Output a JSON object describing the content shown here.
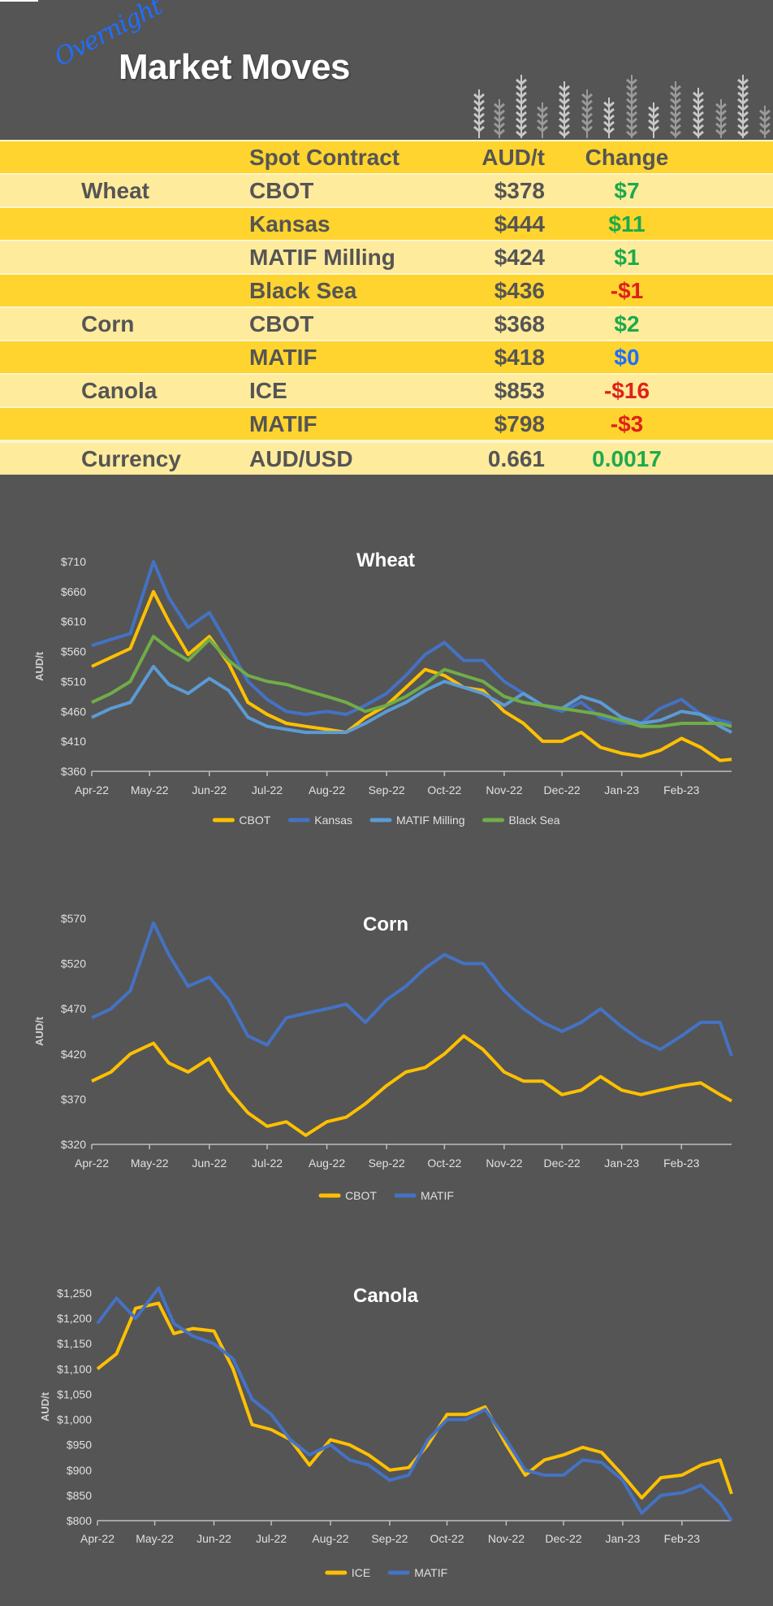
{
  "header": {
    "script_word": "Overnight",
    "title": "Market Moves",
    "icon": "wheat-stalks-icon"
  },
  "table": {
    "headers": {
      "contract": "Spot Contract",
      "price": "AUD/t",
      "change": "Change"
    },
    "rows": [
      {
        "category": "Wheat",
        "contract": "CBOT",
        "price": "$378",
        "change": "$7",
        "change_color": "#1DAA4C"
      },
      {
        "category": "",
        "contract": "Kansas",
        "price": "$444",
        "change": "$11",
        "change_color": "#1DAA4C"
      },
      {
        "category": "",
        "contract": "MATIF Milling",
        "price": "$424",
        "change": "$1",
        "change_color": "#1DAA4C"
      },
      {
        "category": "",
        "contract": "Black Sea",
        "price": "$436",
        "change": "-$1",
        "change_color": "#E0201B"
      },
      {
        "category": "Corn",
        "contract": "CBOT",
        "price": "$368",
        "change": "$2",
        "change_color": "#1DAA4C"
      },
      {
        "category": "",
        "contract": "MATIF",
        "price": "$418",
        "change": "$0",
        "change_color": "#1E6FFF"
      },
      {
        "category": "Canola",
        "contract": "ICE",
        "price": "$853",
        "change": "-$16",
        "change_color": "#E0201B"
      },
      {
        "category": "",
        "contract": "MATIF",
        "price": "$798",
        "change": "-$3",
        "change_color": "#E0201B"
      },
      {
        "category": "Currency",
        "contract": "AUD/USD",
        "price": "0.661",
        "change": "0.0017",
        "change_color": "#1DAA4C"
      }
    ]
  },
  "chart_data": [
    {
      "type": "line",
      "title": "Wheat",
      "ylabel": "AUD/t",
      "xlabel": "",
      "ylim": [
        360,
        710
      ],
      "yticks": [
        "$360",
        "$410",
        "$460",
        "$510",
        "$560",
        "$610",
        "$660",
        "$710"
      ],
      "xlim": [
        "2022-04-01",
        "2023-02-27"
      ],
      "xticks": [
        "Apr-22",
        "May-22",
        "Jun-22",
        "Jul-22",
        "Aug-22",
        "Sep-22",
        "Oct-22",
        "Nov-22",
        "Dec-22",
        "Jan-23",
        "Feb-23"
      ],
      "grid": false,
      "legend": "bottom",
      "x": [
        "2022-04-01",
        "2022-04-11",
        "2022-04-21",
        "2022-05-03",
        "2022-05-11",
        "2022-05-21",
        "2022-06-01",
        "2022-06-11",
        "2022-06-21",
        "2022-07-01",
        "2022-07-11",
        "2022-07-21",
        "2022-08-01",
        "2022-08-11",
        "2022-08-21",
        "2022-09-01",
        "2022-09-11",
        "2022-09-21",
        "2022-10-01",
        "2022-10-11",
        "2022-10-21",
        "2022-11-01",
        "2022-11-11",
        "2022-11-21",
        "2022-12-01",
        "2022-12-11",
        "2022-12-21",
        "2023-01-01",
        "2023-01-11",
        "2023-01-21",
        "2023-02-01",
        "2023-02-11",
        "2023-02-21",
        "2023-02-27"
      ],
      "series": [
        {
          "name": "CBOT",
          "color": "#FFC000",
          "values": [
            535,
            550,
            565,
            660,
            610,
            555,
            585,
            540,
            475,
            455,
            440,
            435,
            430,
            425,
            450,
            470,
            500,
            530,
            520,
            500,
            495,
            460,
            440,
            410,
            410,
            425,
            400,
            390,
            385,
            395,
            415,
            400,
            378,
            380
          ]
        },
        {
          "name": "Kansas",
          "color": "#4472C4",
          "values": [
            570,
            580,
            590,
            710,
            650,
            600,
            625,
            570,
            510,
            480,
            460,
            455,
            460,
            455,
            470,
            490,
            520,
            555,
            575,
            545,
            545,
            510,
            490,
            470,
            460,
            475,
            450,
            440,
            440,
            465,
            480,
            455,
            445,
            440
          ]
        },
        {
          "name": "MATIF Milling",
          "color": "#5B9BD5",
          "values": [
            450,
            465,
            475,
            535,
            505,
            490,
            515,
            495,
            450,
            435,
            430,
            425,
            425,
            425,
            440,
            460,
            475,
            495,
            510,
            500,
            490,
            470,
            490,
            470,
            465,
            485,
            475,
            450,
            440,
            445,
            460,
            455,
            435,
            425
          ]
        },
        {
          "name": "Black Sea",
          "color": "#70AD47",
          "values": [
            475,
            490,
            510,
            585,
            565,
            545,
            580,
            545,
            520,
            510,
            505,
            495,
            485,
            475,
            460,
            470,
            485,
            505,
            530,
            520,
            510,
            485,
            475,
            470,
            465,
            460,
            455,
            445,
            435,
            435,
            440,
            440,
            440,
            435
          ]
        }
      ]
    },
    {
      "type": "line",
      "title": "Corn",
      "ylabel": "AUD/t",
      "xlabel": "",
      "ylim": [
        320,
        570
      ],
      "yticks": [
        "$320",
        "$370",
        "$420",
        "$470",
        "$520",
        "$570"
      ],
      "xlim": [
        "2022-04-01",
        "2023-02-27"
      ],
      "xticks": [
        "Apr-22",
        "May-22",
        "Jun-22",
        "Jul-22",
        "Aug-22",
        "Sep-22",
        "Oct-22",
        "Nov-22",
        "Dec-22",
        "Jan-23",
        "Feb-23"
      ],
      "grid": false,
      "legend": "bottom",
      "x": [
        "2022-04-01",
        "2022-04-11",
        "2022-04-21",
        "2022-05-03",
        "2022-05-11",
        "2022-05-21",
        "2022-06-01",
        "2022-06-11",
        "2022-06-21",
        "2022-07-01",
        "2022-07-11",
        "2022-07-21",
        "2022-08-01",
        "2022-08-11",
        "2022-08-21",
        "2022-09-01",
        "2022-09-11",
        "2022-09-21",
        "2022-10-01",
        "2022-10-11",
        "2022-10-21",
        "2022-11-01",
        "2022-11-11",
        "2022-11-21",
        "2022-12-01",
        "2022-12-11",
        "2022-12-21",
        "2023-01-01",
        "2023-01-11",
        "2023-01-21",
        "2023-02-01",
        "2023-02-11",
        "2023-02-21",
        "2023-02-27"
      ],
      "series": [
        {
          "name": "CBOT",
          "color": "#FFC000",
          "values": [
            390,
            400,
            420,
            432,
            410,
            400,
            415,
            380,
            355,
            340,
            345,
            330,
            345,
            350,
            365,
            385,
            400,
            405,
            420,
            440,
            425,
            400,
            390,
            390,
            375,
            380,
            395,
            380,
            375,
            380,
            385,
            388,
            375,
            368
          ]
        },
        {
          "name": "MATIF",
          "color": "#4472C4",
          "values": [
            460,
            470,
            490,
            565,
            530,
            495,
            505,
            480,
            440,
            430,
            460,
            465,
            470,
            475,
            455,
            480,
            495,
            515,
            530,
            520,
            520,
            490,
            470,
            455,
            445,
            455,
            470,
            450,
            435,
            425,
            440,
            455,
            455,
            418
          ]
        }
      ]
    },
    {
      "type": "line",
      "title": "Canola",
      "ylabel": "AUD/t",
      "xlabel": "",
      "ylim": [
        800,
        1250
      ],
      "yticks": [
        "$800",
        "$850",
        "$900",
        "$950",
        "$1,000",
        "$1,050",
        "$1,100",
        "$1,150",
        "$1,200",
        "$1,250"
      ],
      "xlim": [
        "2022-04-01",
        "2023-02-27"
      ],
      "xticks": [
        "Apr-22",
        "May-22",
        "Jun-22",
        "Jul-22",
        "Aug-22",
        "Sep-22",
        "Oct-22",
        "Nov-22",
        "Dec-22",
        "Jan-23",
        "Feb-23"
      ],
      "grid": false,
      "legend": "bottom",
      "x": [
        "2022-04-01",
        "2022-04-11",
        "2022-04-21",
        "2022-05-03",
        "2022-05-11",
        "2022-05-21",
        "2022-06-01",
        "2022-06-11",
        "2022-06-21",
        "2022-07-01",
        "2022-07-11",
        "2022-07-21",
        "2022-08-01",
        "2022-08-11",
        "2022-08-21",
        "2022-09-01",
        "2022-09-11",
        "2022-09-21",
        "2022-10-01",
        "2022-10-11",
        "2022-10-21",
        "2022-11-01",
        "2022-11-11",
        "2022-11-21",
        "2022-12-01",
        "2022-12-11",
        "2022-12-21",
        "2023-01-01",
        "2023-01-11",
        "2023-01-21",
        "2023-02-01",
        "2023-02-11",
        "2023-02-21",
        "2023-02-27"
      ],
      "series": [
        {
          "name": "ICE",
          "color": "#FFC000",
          "values": [
            1100,
            1130,
            1220,
            1230,
            1170,
            1180,
            1175,
            1100,
            990,
            980,
            960,
            910,
            960,
            950,
            930,
            900,
            905,
            950,
            1010,
            1010,
            1025,
            950,
            890,
            920,
            930,
            945,
            935,
            890,
            845,
            885,
            890,
            910,
            920,
            853
          ]
        },
        {
          "name": "MATIF",
          "color": "#4472C4",
          "values": [
            1190,
            1240,
            1200,
            1260,
            1190,
            1165,
            1150,
            1120,
            1040,
            1010,
            960,
            930,
            950,
            920,
            910,
            880,
            890,
            960,
            1000,
            1000,
            1020,
            960,
            900,
            890,
            890,
            920,
            915,
            880,
            815,
            850,
            855,
            870,
            835,
            800
          ]
        }
      ]
    }
  ]
}
